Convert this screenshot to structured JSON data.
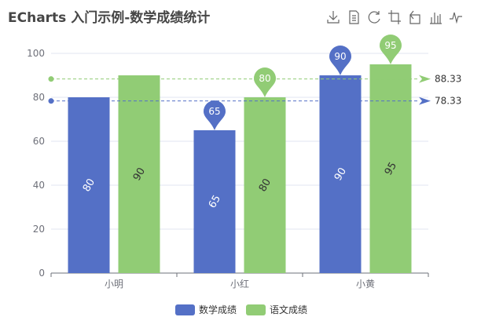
{
  "title": "ECharts 入门示例-数学成绩统计",
  "toolbox": [
    {
      "name": "download-icon"
    },
    {
      "name": "data-view-icon"
    },
    {
      "name": "restore-icon"
    },
    {
      "name": "zoom-icon"
    },
    {
      "name": "zoom-back-icon"
    },
    {
      "name": "bar-chart-icon"
    },
    {
      "name": "line-chart-icon"
    }
  ],
  "chart_data": {
    "type": "bar",
    "categories": [
      "小明",
      "小红",
      "小黄"
    ],
    "ylim": [
      0,
      100
    ],
    "yticks": [
      0,
      20,
      40,
      60,
      80,
      100
    ],
    "grid": true,
    "legend_position": "bottom-center",
    "series": [
      {
        "name": "数学成绩",
        "color": "#5470c6",
        "values": [
          80,
          65,
          90
        ],
        "max_pin": {
          "category": "小黄",
          "value": 90
        },
        "min_pin": {
          "category": "小红",
          "value": 65
        },
        "average": 78.33
      },
      {
        "name": "语文成绩",
        "color": "#91cc75",
        "values": [
          90,
          80,
          95
        ],
        "max_pin": {
          "category": "小黄",
          "value": 95
        },
        "min_pin": {
          "category": "小红",
          "value": 80
        },
        "average": 88.33
      }
    ]
  }
}
